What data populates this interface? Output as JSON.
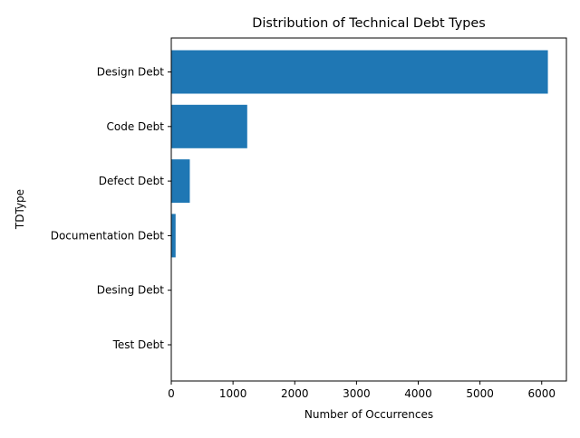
{
  "chart_data": {
    "type": "bar",
    "orientation": "horizontal",
    "title": "Distribution of Technical Debt Types",
    "xlabel": "Number of Occurrences",
    "ylabel": "TDType",
    "categories": [
      "Design Debt",
      "Code Debt",
      "Defect Debt",
      "Documentation Debt",
      "Desing Debt",
      "Test Debt"
    ],
    "values": [
      6100,
      1230,
      300,
      70,
      2,
      1
    ],
    "xlim": [
      0,
      6400
    ],
    "xticks": [
      0,
      1000,
      2000,
      3000,
      4000,
      5000,
      6000
    ],
    "xtick_labels": [
      "0",
      "1000",
      "2000",
      "3000",
      "4000",
      "5000",
      "6000"
    ],
    "grid": false,
    "bar_color": "#1f77b4"
  }
}
